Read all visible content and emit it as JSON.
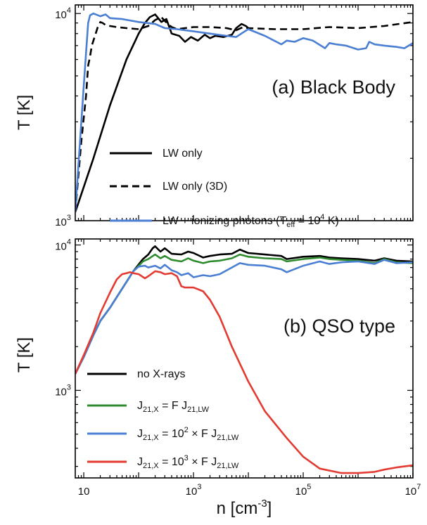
{
  "chart_data": [
    {
      "panel": "(a)",
      "type": "line",
      "title": "(a) Black Body",
      "xlabel": "",
      "ylabel": "T [K]",
      "xscale": "log",
      "yscale": "log",
      "xlim": [
        7,
        10000000
      ],
      "ylim": [
        1000,
        11000
      ],
      "xticks": [
        {
          "value": 10,
          "label": ""
        },
        {
          "value": 1000,
          "label": ""
        },
        {
          "value": 100000,
          "label": ""
        },
        {
          "value": 10000000,
          "label": ""
        }
      ],
      "yticks": [
        {
          "value": 1000,
          "base": "10",
          "exp": "3"
        },
        {
          "value": 10000,
          "base": "10",
          "exp": "4"
        }
      ],
      "legend_position": "bottom-left",
      "series": [
        {
          "name": "LW only",
          "color": "#000000",
          "dash": "solid",
          "x": [
            7,
            15,
            30,
            60,
            100,
            130,
            160,
            200,
            260,
            320,
            400,
            550,
            700,
            900,
            1200,
            1600,
            2000,
            2500,
            3500,
            5000,
            6000,
            7500,
            9000,
            10000
          ],
          "y": [
            1100,
            2000,
            3600,
            6000,
            8000,
            9000,
            9600,
            9900,
            9100,
            9400,
            8000,
            7800,
            7300,
            7700,
            7400,
            7900,
            7600,
            7800,
            7700,
            7900,
            8500,
            8900,
            8700,
            8500
          ]
        },
        {
          "name": "LW only (3D)",
          "color": "#000000",
          "dash": "dashed",
          "x": [
            7,
            9,
            11,
            12,
            13,
            14,
            16,
            18,
            20,
            22,
            25,
            30,
            40,
            60,
            100,
            150,
            200,
            260,
            300,
            400,
            500,
            700,
            1000,
            2000,
            4000,
            6000,
            8000,
            10000,
            30000,
            100000,
            300000,
            1000000,
            3000000,
            10000000
          ],
          "y": [
            1100,
            2400,
            4000,
            5600,
            6200,
            7000,
            7800,
            8600,
            9100,
            9000,
            8800,
            8700,
            8600,
            8500,
            8400,
            8700,
            9300,
            9600,
            9200,
            8600,
            8400,
            8500,
            8600,
            8600,
            8500,
            8300,
            8600,
            8500,
            8400,
            8400,
            8600,
            8500,
            8700,
            9100
          ]
        },
        {
          "name": "LW + ionizing photons (T_eff = 10^4 K)",
          "color": "#4a7fd4",
          "dash": "solid",
          "x": [
            7,
            10,
            12,
            13,
            15,
            20,
            25,
            30,
            50,
            100,
            200,
            300,
            500,
            1000,
            2000,
            4000,
            6000,
            8000,
            10000,
            20000,
            40000,
            50000,
            70000,
            100000,
            150000,
            250000,
            300000,
            400000,
            600000,
            1000000,
            1400000,
            1600000,
            2000000,
            3000000,
            5000000,
            7000000,
            10000000
          ],
          "y": [
            1100,
            4500,
            9000,
            9800,
            10000,
            9700,
            9900,
            9500,
            9400,
            9100,
            8900,
            8500,
            8400,
            8200,
            8000,
            7800,
            7700,
            8100,
            8400,
            7800,
            7100,
            7400,
            7300,
            7600,
            7400,
            6800,
            7200,
            7100,
            7000,
            6700,
            6800,
            7300,
            7100,
            7000,
            6900,
            6800,
            7200
          ]
        }
      ],
      "legend": [
        {
          "series": 0,
          "text": "LW only"
        },
        {
          "series": 1,
          "text": "LW only (3D)"
        },
        {
          "series": 2,
          "text_main": "LW + ionizing photons (T",
          "text_sub": "eff",
          "text_mid": " = 10",
          "text_sup": "4",
          "text_end": " K)"
        }
      ]
    },
    {
      "panel": "(b)",
      "type": "line",
      "title": "(b) QSO type",
      "xlabel_base": "n [cm",
      "xlabel_sup": "-3",
      "xlabel_end": "]",
      "ylabel": "T [K]",
      "xscale": "log",
      "yscale": "log",
      "xlim": [
        7,
        10000000
      ],
      "ylim": [
        250,
        11000
      ],
      "xticks": [
        {
          "value": 10,
          "base": "10",
          "exp": ""
        },
        {
          "value": 1000,
          "base": "10",
          "exp": "3"
        },
        {
          "value": 100000,
          "base": "10",
          "exp": "5"
        },
        {
          "value": 10000000,
          "base": "10",
          "exp": "7"
        }
      ],
      "yticks": [
        {
          "value": 1000,
          "base": "10",
          "exp": "3"
        },
        {
          "value": 10000,
          "base": "10",
          "exp": "4"
        }
      ],
      "legend_position": "bottom-left",
      "series": [
        {
          "name": "no X-rays",
          "color": "#000000",
          "x": [
            7,
            10,
            15,
            20,
            30,
            50,
            80,
            120,
            150,
            180,
            200,
            250,
            300,
            400,
            600,
            800,
            1000,
            1500,
            2000,
            3000,
            5000,
            7000,
            8000,
            10000,
            20000,
            40000,
            50000,
            100000,
            200000,
            300000,
            500000,
            1000000,
            2000000,
            3000000,
            5000000,
            10000000
          ],
          "y": [
            1300,
            1700,
            2400,
            3000,
            3700,
            5000,
            6600,
            8000,
            8600,
            9500,
            9800,
            9000,
            9500,
            8700,
            8600,
            9000,
            8800,
            8200,
            8400,
            8600,
            8700,
            9300,
            9100,
            8800,
            8600,
            8400,
            8000,
            8300,
            8400,
            8200,
            8100,
            8000,
            7800,
            8100,
            7800,
            7700
          ]
        },
        {
          "name": "J_21,X = F J_21,LW",
          "color": "#2e8b2e",
          "x": [
            7,
            10,
            15,
            20,
            30,
            50,
            80,
            120,
            150,
            200,
            250,
            300,
            400,
            600,
            800,
            1000,
            1500,
            2000,
            3000,
            5000,
            7000,
            10000,
            20000,
            40000,
            50000,
            100000,
            200000,
            300000,
            500000,
            1000000,
            2000000,
            3000000,
            5000000,
            10000000
          ],
          "y": [
            1300,
            1700,
            2400,
            3000,
            3700,
            5000,
            6600,
            7700,
            8000,
            8600,
            8100,
            8400,
            7900,
            7700,
            8100,
            7800,
            7500,
            7700,
            7800,
            8100,
            8600,
            8300,
            8100,
            8000,
            7700,
            8000,
            8200,
            8000,
            7900,
            7800,
            7500,
            8000,
            7600,
            7500
          ]
        },
        {
          "name": "J_21,X = 10^2 × F J_21,LW",
          "color": "#4a7fd4",
          "x": [
            7,
            10,
            15,
            20,
            30,
            50,
            80,
            100,
            130,
            150,
            200,
            250,
            300,
            400,
            500,
            600,
            800,
            1000,
            1500,
            2000,
            3000,
            5000,
            7000,
            10000,
            20000,
            40000,
            50000,
            100000,
            200000,
            300000,
            500000,
            1000000,
            2000000,
            3000000,
            5000000,
            10000000
          ],
          "y": [
            1300,
            1700,
            2400,
            3000,
            3700,
            5000,
            6600,
            7100,
            7200,
            7000,
            7200,
            6900,
            7300,
            6700,
            6500,
            6200,
            6400,
            6000,
            6200,
            6100,
            6300,
            7000,
            7500,
            7300,
            7200,
            6800,
            6500,
            7200,
            7700,
            7400,
            7600,
            7700,
            7400,
            7900,
            7500,
            7600
          ]
        },
        {
          "name": "J_21,X = 10^3 × F J_21,LW",
          "color": "#e33b32",
          "x": [
            7,
            10,
            15,
            20,
            30,
            40,
            50,
            60,
            70,
            80,
            100,
            130,
            150,
            200,
            250,
            300,
            400,
            500,
            600,
            700,
            1000,
            1500,
            2000,
            3000,
            5000,
            10000,
            20000,
            50000,
            100000,
            200000,
            500000,
            1000000,
            2000000,
            3000000,
            5000000,
            10000000
          ],
          "y": [
            1300,
            1750,
            2500,
            3400,
            4700,
            5800,
            6300,
            6400,
            6500,
            6400,
            6300,
            5900,
            6100,
            6600,
            6500,
            6300,
            6400,
            6100,
            5200,
            5100,
            5100,
            4800,
            4200,
            3200,
            2000,
            1150,
            720,
            470,
            350,
            290,
            270,
            270,
            275,
            285,
            295,
            305
          ]
        }
      ],
      "legend": [
        {
          "series": 0,
          "text": "no X-rays"
        },
        {
          "series": 1,
          "main": "J",
          "sub": "21,X",
          "mid": " = F J",
          "sub2": "21,LW"
        },
        {
          "series": 2,
          "main": "J",
          "sub": "21,X",
          "mid": " = 10",
          "sup": "2",
          "mid2": " × F J",
          "sub2": "21,LW"
        },
        {
          "series": 3,
          "main": "J",
          "sub": "21,X",
          "mid": " = 10",
          "sup": "3",
          "mid2": " × F J",
          "sub2": "21,LW"
        }
      ]
    }
  ]
}
